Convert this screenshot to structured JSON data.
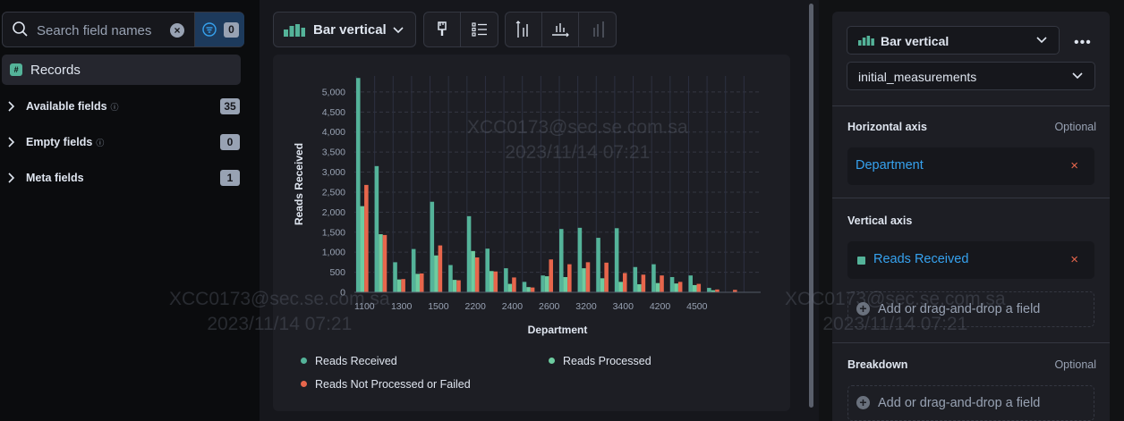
{
  "sidebar": {
    "search_placeholder": "Search field names",
    "filter_count": "0",
    "records_label": "Records",
    "groups": [
      {
        "label": "Available fields",
        "count": "35",
        "help": true
      },
      {
        "label": "Empty fields",
        "count": "0",
        "help": true
      },
      {
        "label": "Meta fields",
        "count": "1",
        "help": false
      }
    ]
  },
  "toolbar": {
    "chart_type_label": "Bar vertical"
  },
  "chart_data": {
    "type": "bar",
    "xlabel": "Department",
    "ylabel": "Reads Received",
    "ylim": [
      0,
      5400
    ],
    "yticks": [
      0,
      500,
      1000,
      1500,
      2000,
      2500,
      3000,
      3500,
      4000,
      4500,
      5000
    ],
    "ytick_labels": [
      "0",
      "500",
      "1,000",
      "1,500",
      "2,000",
      "2,500",
      "3,000",
      "3,500",
      "4,000",
      "4,500",
      "5,000"
    ],
    "xtick_labels": [
      "1100",
      "1300",
      "1500",
      "2200",
      "2400",
      "2600",
      "3200",
      "3400",
      "4200",
      "4500"
    ],
    "legend_position": "bottom",
    "grid": true,
    "group_count": 22,
    "series": [
      {
        "name": "Reads Received",
        "color": "#54b399",
        "values": [
          5350,
          3150,
          750,
          1080,
          2260,
          680,
          1900,
          1090,
          600,
          260,
          420,
          1580,
          1610,
          1360,
          1600,
          630,
          700,
          380,
          420,
          110,
          0,
          0
        ]
      },
      {
        "name": "Reads Processed",
        "color": "#6dcca0",
        "values": [
          2150,
          1450,
          320,
          460,
          920,
          310,
          1030,
          530,
          210,
          130,
          400,
          380,
          600,
          350,
          260,
          200,
          230,
          220,
          180,
          50,
          0,
          0
        ]
      },
      {
        "name": "Reads Not Processed or Failed",
        "color": "#e7664c",
        "values": [
          2680,
          1430,
          330,
          470,
          1170,
          300,
          870,
          520,
          370,
          120,
          820,
          700,
          750,
          740,
          480,
          440,
          420,
          260,
          210,
          70,
          0,
          0
        ]
      }
    ]
  },
  "right_panel": {
    "chart_type_label": "Bar vertical",
    "index_label": "initial_measurements",
    "horizontal_axis": {
      "title": "Horizontal axis",
      "optional": "Optional",
      "field": "Department"
    },
    "vertical_axis": {
      "title": "Vertical axis",
      "field": "Reads Received",
      "add_label": "Add or drag-and-drop a field"
    },
    "breakdown": {
      "title": "Breakdown",
      "optional": "Optional",
      "add_label": "Add or drag-and-drop a field"
    }
  },
  "watermarks": [
    {
      "line1": "XCC0173@sec.se.com.sa",
      "line2": "2023/11/14 07:21"
    },
    {
      "line1": "XCC0173@sec.se.com.sa",
      "line2": "2023/11/14 07:21"
    },
    {
      "line1": "XCC0173@sec.se.com.sa",
      "line2": "2023/11/14 07:21"
    }
  ]
}
